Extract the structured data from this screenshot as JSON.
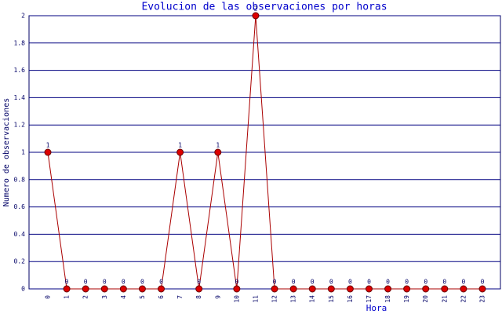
{
  "chart_data": {
    "type": "line",
    "title": "Evolucion de las observaciones por horas",
    "x_label": "Hora",
    "y_label": "Numero de observaciones",
    "categories": [
      "0",
      "1",
      "2",
      "3",
      "4",
      "5",
      "6",
      "7",
      "8",
      "9",
      "10",
      "11",
      "12",
      "13",
      "14",
      "15",
      "16",
      "17",
      "18",
      "19",
      "20",
      "21",
      "22",
      "23"
    ],
    "values": [
      1,
      0,
      0,
      0,
      0,
      0,
      0,
      1,
      0,
      1,
      0,
      2,
      0,
      0,
      0,
      0,
      0,
      0,
      0,
      0,
      0,
      0,
      0,
      0
    ],
    "color": "#aa0000",
    "marker_color": "#dd0000",
    "ylim": [
      0,
      2
    ],
    "yticks": [
      0,
      0.2,
      0.4,
      0.6,
      0.8,
      1,
      1.2,
      1.4,
      1.6,
      1.8,
      2
    ],
    "grid": true
  }
}
